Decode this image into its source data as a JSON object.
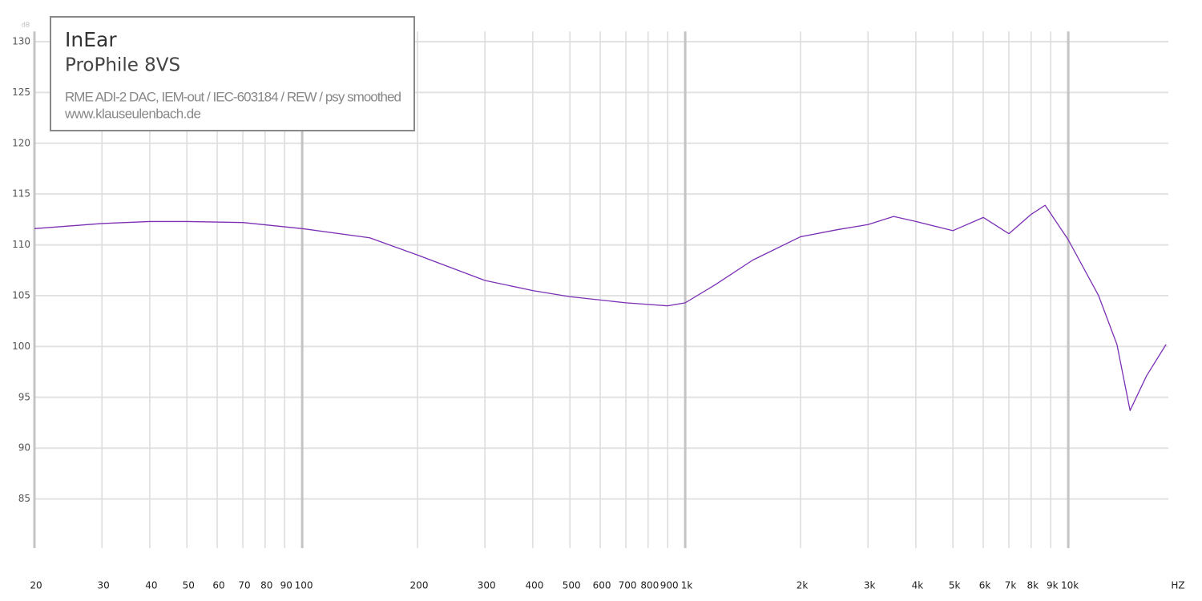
{
  "chart_data": {
    "type": "line",
    "title": "InEar",
    "subtitle": "ProPhile 8VS",
    "annotations": [
      "RME ADI-2 DAC, IEM-out / IEC-603184 / REW / psy smoothed",
      "www.klauseulenbach.de"
    ],
    "x_label": "HZ",
    "y_label": "dB",
    "x_scale": "log",
    "grid": true,
    "x": [
      20,
      30,
      40,
      50,
      70,
      100,
      150,
      200,
      300,
      400,
      500,
      700,
      900,
      1000,
      1200,
      1500,
      2000,
      2500,
      3000,
      3500,
      4000,
      5000,
      6000,
      7000,
      8000,
      8700,
      10000,
      12000,
      13400,
      14500,
      16000,
      18000
    ],
    "series": [
      {
        "name": "ProPhile 8VS",
        "color": "#7b2fb5",
        "values": [
          111.6,
          112.1,
          112.3,
          112.3,
          112.2,
          111.6,
          110.7,
          109.0,
          106.5,
          105.5,
          104.9,
          104.3,
          104.0,
          104.3,
          106.1,
          108.5,
          110.8,
          111.5,
          112.0,
          112.8,
          112.3,
          111.4,
          112.7,
          111.1,
          113.0,
          113.9,
          110.5,
          105.0,
          100.2,
          93.7,
          97.1,
          100.2
        ]
      }
    ],
    "xlim": [
      20,
      18000
    ],
    "ylim": [
      80,
      131
    ],
    "yticks": [
      85,
      90,
      95,
      100,
      105,
      110,
      115,
      120,
      125,
      130
    ],
    "xticks": [
      20,
      30,
      40,
      50,
      60,
      70,
      80,
      90,
      100,
      200,
      300,
      400,
      500,
      600,
      700,
      800,
      900,
      {
        "value": 1000,
        "label": "1k"
      },
      {
        "value": 2000,
        "label": "2k"
      },
      {
        "value": 3000,
        "label": "3k"
      },
      {
        "value": 4000,
        "label": "4k"
      },
      {
        "value": 5000,
        "label": "5k"
      },
      {
        "value": 6000,
        "label": "6k"
      },
      {
        "value": 7000,
        "label": "7k"
      },
      {
        "value": 8000,
        "label": "8k"
      },
      {
        "value": 9000,
        "label": "9k"
      },
      {
        "value": 10000,
        "label": "10k"
      }
    ]
  }
}
